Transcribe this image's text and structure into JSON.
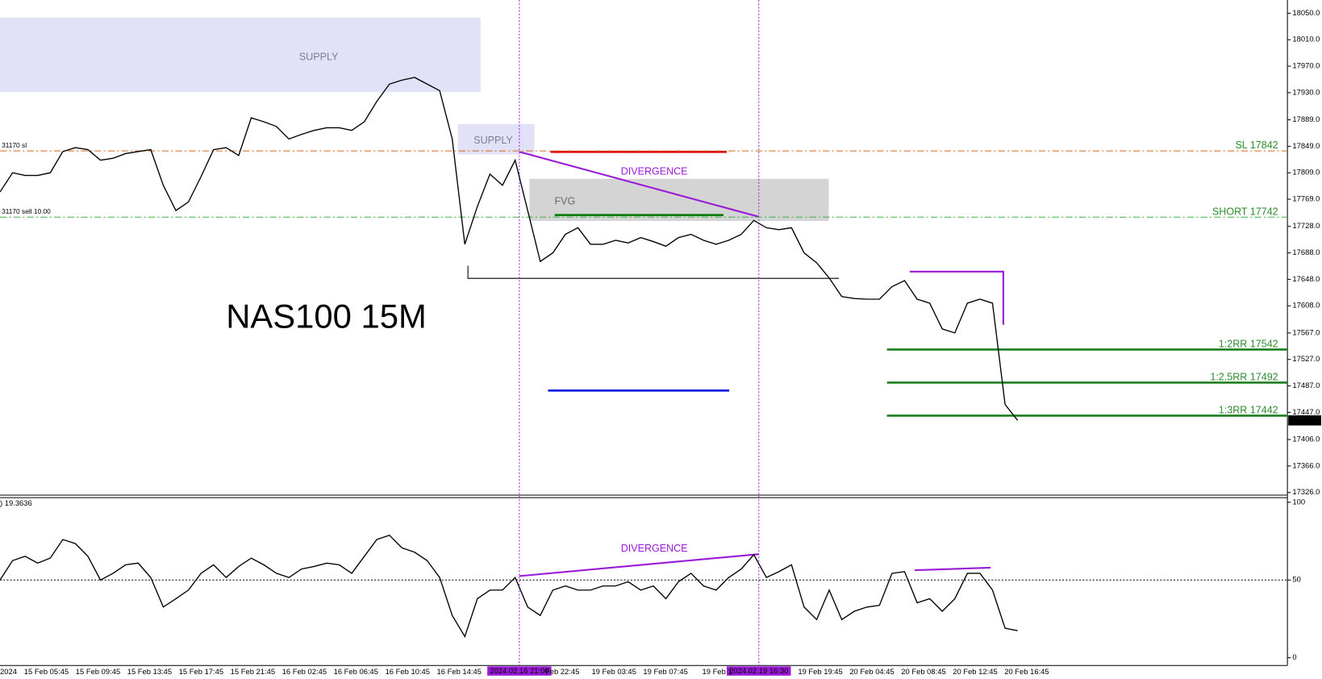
{
  "chart_data": [
    {
      "type": "line",
      "title": "NAS100 15M",
      "color": "#000000",
      "values": [
        17780,
        17809,
        17805,
        17805,
        17809,
        17841,
        17847,
        17844,
        17828,
        17831,
        17838,
        17841,
        17844,
        17790,
        17752,
        17765,
        17803,
        17844,
        17847,
        17835,
        17892,
        17886,
        17879,
        17860,
        17867,
        17873,
        17877,
        17877,
        17873,
        17886,
        17917,
        17943,
        17949,
        17953,
        17943,
        17933,
        17860,
        17701,
        17758,
        17807,
        17790,
        17828,
        17752,
        17675,
        17688,
        17716,
        17726,
        17701,
        17701,
        17707,
        17703,
        17711,
        17705,
        17698,
        17711,
        17716,
        17707,
        17701,
        17707,
        17716,
        17737,
        17726,
        17723,
        17726,
        17688,
        17673,
        17650,
        17622,
        17619,
        17618,
        17618,
        17637,
        17646,
        17618,
        17612,
        17573,
        17567,
        17612,
        17618,
        17612,
        17459,
        17434.9
      ],
      "ylim": [
        17322,
        18070
      ],
      "yticks": [
        {
          "value": 18050,
          "label": "18050.0"
        },
        {
          "value": 18010,
          "label": "18010.0"
        },
        {
          "value": 17970,
          "label": "17970.0"
        },
        {
          "value": 17930,
          "label": "17930.0"
        },
        {
          "value": 17889,
          "label": "17889.0"
        },
        {
          "value": 17849,
          "label": "17849.0"
        },
        {
          "value": 17809,
          "label": "17809.0"
        },
        {
          "value": 17769,
          "label": "17769.0"
        },
        {
          "value": 17728,
          "label": "17728.0"
        },
        {
          "value": 17688,
          "label": "17688.0"
        },
        {
          "value": 17648,
          "label": "17648.0"
        },
        {
          "value": 17608,
          "label": "17608.0"
        },
        {
          "value": 17567,
          "label": "17567.0"
        },
        {
          "value": 17527,
          "label": "17527.0"
        },
        {
          "value": 17487,
          "label": "17487.0"
        },
        {
          "value": 17447,
          "label": "17447.0"
        },
        {
          "value": 17406,
          "label": "17406.0"
        },
        {
          "value": 17366,
          "label": "17366.0"
        },
        {
          "value": 17326,
          "label": "17326.0"
        }
      ],
      "levels": [
        {
          "label": "SL 17842",
          "value": 17842,
          "tag": "31170 sl",
          "color": "#d2691e",
          "style": "dashdot"
        },
        {
          "label": "SHORT 17742",
          "value": 17742,
          "tag": "31170 sell 10.00",
          "color": "#3cb043",
          "style": "dashdot"
        },
        {
          "label": "1:2RR 17542",
          "value": 17542,
          "color": "#1e7d1e",
          "style": "solid"
        },
        {
          "label": "1:2.5RR 17492",
          "value": 17492,
          "color": "#1e7d1e",
          "style": "solid"
        },
        {
          "label": "1:3RR 17442",
          "value": 17442,
          "color": "#1e7d1e",
          "style": "solid"
        }
      ],
      "level_label_color": "#2e8b2e",
      "annotations": [
        "SUPPLY",
        "SUPPLY",
        "FVG",
        "DIVERGENCE"
      ]
    },
    {
      "type": "line",
      "label": ") 19.3636",
      "color": "#000000",
      "values": [
        50.0,
        62.5,
        65.2,
        60.9,
        64.1,
        76.1,
        73.4,
        65.2,
        50.0,
        54.3,
        59.8,
        60.9,
        51.6,
        32.6,
        38.0,
        43.5,
        54.3,
        59.8,
        51.6,
        58.7,
        64.1,
        59.8,
        54.3,
        51.6,
        57.1,
        58.7,
        60.9,
        59.8,
        54.3,
        65.2,
        76.1,
        78.8,
        70.7,
        67.9,
        62.5,
        51.6,
        27.2,
        13.6,
        38.0,
        43.5,
        43.5,
        51.6,
        32.6,
        27.2,
        43.5,
        46.2,
        43.5,
        43.5,
        46.2,
        46.2,
        48.9,
        43.5,
        46.2,
        38.0,
        48.9,
        54.3,
        46.2,
        43.5,
        51.6,
        57.1,
        66.3,
        51.6,
        55.4,
        59.8,
        32.6,
        24.5,
        43.5,
        24.5,
        29.9,
        32.6,
        33.7,
        54.3,
        55.4,
        35.3,
        38.0,
        29.9,
        38.0,
        54.3,
        54.3,
        43.5,
        19.0,
        17.4
      ],
      "ylim": [
        -5,
        103
      ],
      "yticks": [
        100,
        50,
        0
      ],
      "level": 50,
      "annotations": [
        "DIVERGENCE"
      ]
    }
  ],
  "time_axis": {
    "labels": [
      "2024",
      "15 Feb 05:45",
      "15 Feb 09:45",
      "15 Feb 13:45",
      "15 Feb 17:45",
      "15 Feb 21:45",
      "16 Feb 02:45",
      "16 Feb 06:45",
      "16 Feb 10:45",
      "16 Feb 14:45",
      null,
      "Feb 22:45",
      "19 Feb 03:45",
      "19 Feb 07:45",
      "19 Feb 1",
      null,
      "19 Feb 19:45",
      "20 Feb 04:45",
      "20 Feb 08:45",
      "20 Feb 12:45",
      "20 Feb 16:45"
    ],
    "markers": [
      "2024.02.16 21:00",
      "2024.02.19 16:30"
    ]
  }
}
